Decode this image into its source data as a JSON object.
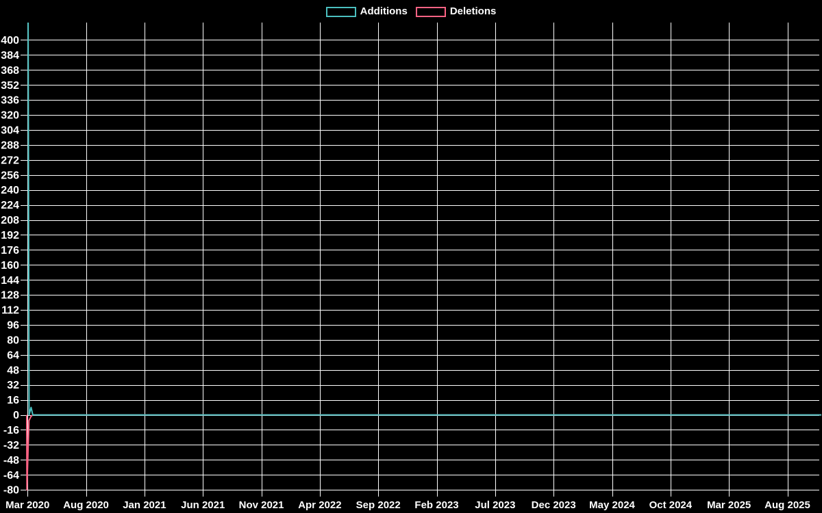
{
  "chart_data": {
    "type": "line",
    "title": "",
    "background_color": "#000000",
    "grid": {
      "show": true,
      "color": "#ffffff"
    },
    "text_color": "#ffffff",
    "legend_position": "top",
    "legend": {
      "items": [
        {
          "label": "Additions",
          "color": "#4bc0c0"
        },
        {
          "label": "Deletions",
          "color": "#ff6384"
        }
      ]
    },
    "x_axis": {
      "unit": "months since first tick (Mar 2020)",
      "tick_labels": [
        "Mar 2020",
        "Aug 2020",
        "Jan 2021",
        "Jun 2021",
        "Nov 2021",
        "Apr 2022",
        "Sep 2022",
        "Feb 2023",
        "Jul 2023",
        "Dec 2023",
        "May 2024",
        "Oct 2024",
        "Mar 2025",
        "Aug 2025"
      ],
      "tick_positions_months": [
        0,
        5,
        10,
        15,
        20,
        25,
        30,
        35,
        40,
        45,
        50,
        55,
        60,
        65
      ],
      "range_months": [
        -0.6,
        67.9
      ]
    },
    "y_axis": {
      "tick_step": 16,
      "tick_values": [
        400,
        384,
        368,
        352,
        336,
        320,
        304,
        288,
        272,
        256,
        240,
        224,
        208,
        192,
        176,
        160,
        144,
        128,
        112,
        96,
        80,
        64,
        48,
        32,
        16,
        0,
        -16,
        -32,
        -48,
        -64,
        -80
      ],
      "range": [
        -80.6,
        418.6
      ]
    },
    "series": [
      {
        "name": "Additions",
        "color": "#4bc0c0",
        "points_months_value": [
          [
            0.05,
            420
          ],
          [
            0.13,
            0
          ],
          [
            0.3,
            8
          ],
          [
            0.45,
            0
          ],
          [
            67.9,
            0
          ]
        ],
        "note": "initial spike clipped at top edge of plot (~418); small secondary bump ~8; flat at 0 afterwards"
      },
      {
        "name": "Deletions",
        "color": "#ff6384",
        "points_months_value": [
          [
            -0.075,
            0
          ],
          [
            -0.055,
            -80
          ],
          [
            0.12,
            -6
          ],
          [
            0.3,
            -1.5
          ],
          [
            0.45,
            0
          ],
          [
            67.9,
            0
          ]
        ],
        "note": "initial spike reaches bottom edge of plot (-80); flat at 0 afterwards"
      }
    ]
  }
}
